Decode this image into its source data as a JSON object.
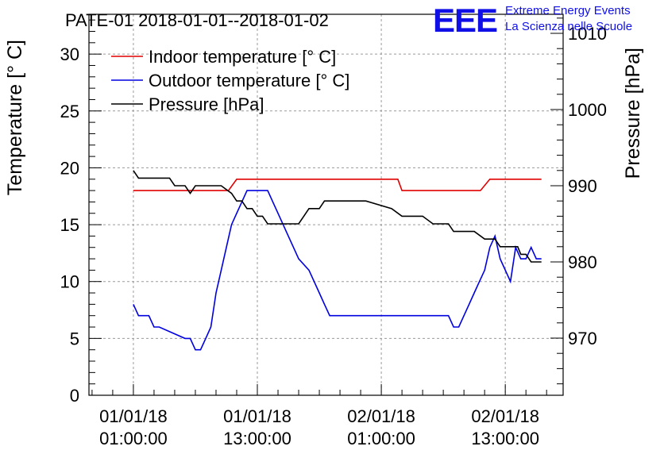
{
  "chart_data": {
    "type": "line",
    "title": "PATE-01 2018-01-01--2018-01-02",
    "logo": {
      "mark": "EEE",
      "line1": "Extreme Energy Events",
      "line2": "La Scienza nelle Scuole",
      "color": "#1010e6"
    },
    "ylabel": "Temperature [° C]",
    "y2label": "Pressure [hPa]",
    "ylim": [
      0,
      33.5
    ],
    "y2lim": [
      962.5,
      1012.5
    ],
    "yticks": [
      "0",
      "5",
      "10",
      "15",
      "20",
      "25",
      "30"
    ],
    "y2ticks": [
      "970",
      "980",
      "990",
      "1000",
      "1010"
    ],
    "xticks": [
      {
        "date": "01/01/18",
        "time": "01:00:00",
        "hours": 0
      },
      {
        "date": "01/01/18",
        "time": "13:00:00",
        "hours": 12
      },
      {
        "date": "02/01/18",
        "time": "01:00:00",
        "hours": 24
      },
      {
        "date": "02/01/18",
        "time": "13:00:00",
        "hours": 36
      }
    ],
    "xlim_hours": [
      -4.3,
      41.6
    ],
    "grid": true,
    "legend_position": "top-left",
    "series": [
      {
        "name": "Indoor temperature [° C]",
        "axis": "left",
        "color": "#e00000",
        "x": [
          0,
          9.2,
          10,
          25.6,
          26,
          33.6,
          34.5,
          39.5
        ],
        "y": [
          18,
          18,
          19,
          19,
          18,
          18,
          19,
          19
        ]
      },
      {
        "name": "Outdoor temperature [° C]",
        "axis": "left",
        "color": "#0000e0",
        "x": [
          0,
          0.5,
          1.5,
          2,
          2.5,
          5,
          5.5,
          6,
          6.5,
          7,
          7.5,
          8,
          8.5,
          9,
          9.5,
          10,
          10.5,
          11,
          11.5,
          12,
          12.5,
          13,
          13.5,
          14,
          14.5,
          15,
          15.5,
          16,
          17,
          17.5,
          18,
          18.5,
          19,
          20,
          20.5,
          21,
          22,
          23,
          23.5,
          24,
          25,
          26,
          26.5,
          27,
          28,
          29,
          30,
          30.5,
          31,
          31.5,
          32,
          32.5,
          33,
          33.5,
          34,
          34.5,
          35,
          35.5,
          36,
          36.5,
          37,
          37.5,
          38,
          38.5,
          39,
          39.5
        ],
        "y": [
          8,
          7,
          7,
          6,
          6,
          5,
          5,
          4,
          4,
          5,
          6,
          9,
          11,
          13,
          15,
          16,
          17,
          18,
          18,
          18,
          18,
          18,
          17,
          16,
          15,
          14,
          13,
          12,
          11,
          10,
          9,
          8,
          7,
          7,
          7,
          7,
          7,
          7,
          7,
          7,
          7,
          7,
          7,
          7,
          7,
          7,
          7,
          7,
          6,
          6,
          7,
          8,
          9,
          10,
          11,
          13,
          14,
          12,
          11,
          10,
          13,
          12,
          12,
          13,
          12,
          12
        ]
      },
      {
        "name": "Pressure [hPa]",
        "axis": "right",
        "color": "#000000",
        "x": [
          0,
          0.5,
          3.5,
          4,
          5,
          5.5,
          6,
          7,
          8,
          8.5,
          9.5,
          10,
          10.5,
          11,
          11.5,
          12,
          12.5,
          13,
          14.5,
          15,
          16,
          16.5,
          17,
          17.5,
          18,
          18.5,
          20,
          21,
          22,
          22.5,
          25,
          26,
          27,
          28,
          29,
          30,
          30.5,
          31,
          32,
          33,
          34,
          35,
          35.5,
          36,
          36.5,
          37.2,
          37.5,
          38,
          38.5,
          39,
          39.5
        ],
        "y": [
          992,
          991,
          991,
          990,
          990,
          989,
          990,
          990,
          990,
          990,
          989,
          988,
          988,
          987,
          987,
          986,
          986,
          985,
          985,
          985,
          985,
          986,
          987,
          987,
          987,
          988,
          988,
          988,
          988,
          988,
          987,
          986,
          986,
          986,
          985,
          985,
          985,
          984,
          984,
          984,
          983,
          983,
          982,
          982,
          982,
          982,
          981,
          981,
          980,
          980,
          980
        ]
      }
    ]
  }
}
